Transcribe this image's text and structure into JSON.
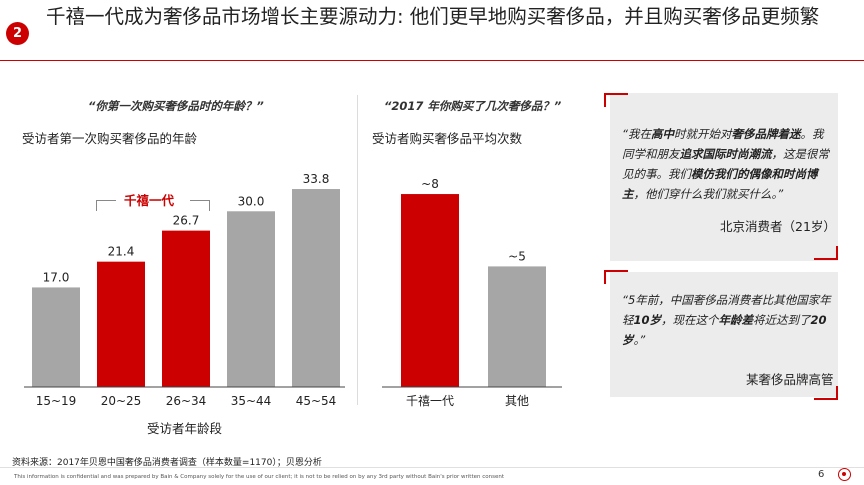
{
  "slide": {
    "badge": "2",
    "title": "千禧一代成为奢侈品市场增长主要源动力: 他们更早地购买奢侈品，并且购买奢侈品更频繁",
    "source": "资料来源：2017年贝恩中国奢侈品消费者调查（样本数量=1170）；贝恩分析",
    "disclaimer": "This information is confidential and was prepared by Bain & Company solely for the use of our client; it is not to be relied on by any 3rd party without Bain's prior written consent",
    "page_number": "6"
  },
  "left_panel": {
    "question": "“你第一次购买奢侈品时的年龄？”",
    "subtitle": "受访者第一次购买奢侈品的年龄",
    "bracket_label": "千禧一代"
  },
  "right_panel": {
    "question": "“2017 年你购买了几次奢侈品？”",
    "subtitle": "受访者购买奢侈品平均次数"
  },
  "quotes": [
    {
      "segments": [
        {
          "t": "“我在",
          "b": false
        },
        {
          "t": "高中",
          "b": true
        },
        {
          "t": "时就开始对",
          "b": false
        },
        {
          "t": "奢侈品牌着迷",
          "b": true
        },
        {
          "t": "。我同学和朋友",
          "b": false
        },
        {
          "t": "追求国际时尚潮流",
          "b": true
        },
        {
          "t": "，这是很常见的事。我们",
          "b": false
        },
        {
          "t": "模仿我们的偶像和时尚博主",
          "b": true
        },
        {
          "t": "，他们穿什么我们就买什么。”",
          "b": false
        }
      ],
      "author": "北京消费者（21岁）"
    },
    {
      "segments": [
        {
          "t": "“5年前，中国奢侈品消费者比其他国家年轻",
          "b": false
        },
        {
          "t": "10岁",
          "b": true
        },
        {
          "t": "，现在这个",
          "b": false
        },
        {
          "t": "年龄差",
          "b": true
        },
        {
          "t": "将近达到了",
          "b": false
        },
        {
          "t": "20岁",
          "b": true
        },
        {
          "t": "。”",
          "b": false
        }
      ],
      "author": "某奢侈品牌高管"
    }
  ],
  "colors": {
    "accent": "#cc0000",
    "bar_grey": "#a6a6a6",
    "bar_red": "#cc0000",
    "quote_bg": "#ececec"
  },
  "chart_data": [
    {
      "type": "bar",
      "title": "受访者第一次购买奢侈品的年龄",
      "xlabel": "受访者年龄段",
      "ylabel": "",
      "categories": [
        "15~19",
        "20~25",
        "26~34",
        "35~44",
        "45~54"
      ],
      "values": [
        17.0,
        21.4,
        26.7,
        30.0,
        33.8
      ],
      "value_labels": [
        "17.0",
        "21.4",
        "26.7",
        "30.0",
        "33.8"
      ],
      "highlight": [
        false,
        true,
        true,
        false,
        false
      ],
      "ylim": [
        0,
        35
      ]
    },
    {
      "type": "bar",
      "title": "受访者购买奢侈品平均次数",
      "xlabel": "",
      "ylabel": "",
      "categories": [
        "千禧一代",
        "其他"
      ],
      "values": [
        8,
        5
      ],
      "value_labels": [
        "~8",
        "~5"
      ],
      "highlight": [
        true,
        false
      ],
      "ylim": [
        0,
        8.5
      ]
    }
  ]
}
